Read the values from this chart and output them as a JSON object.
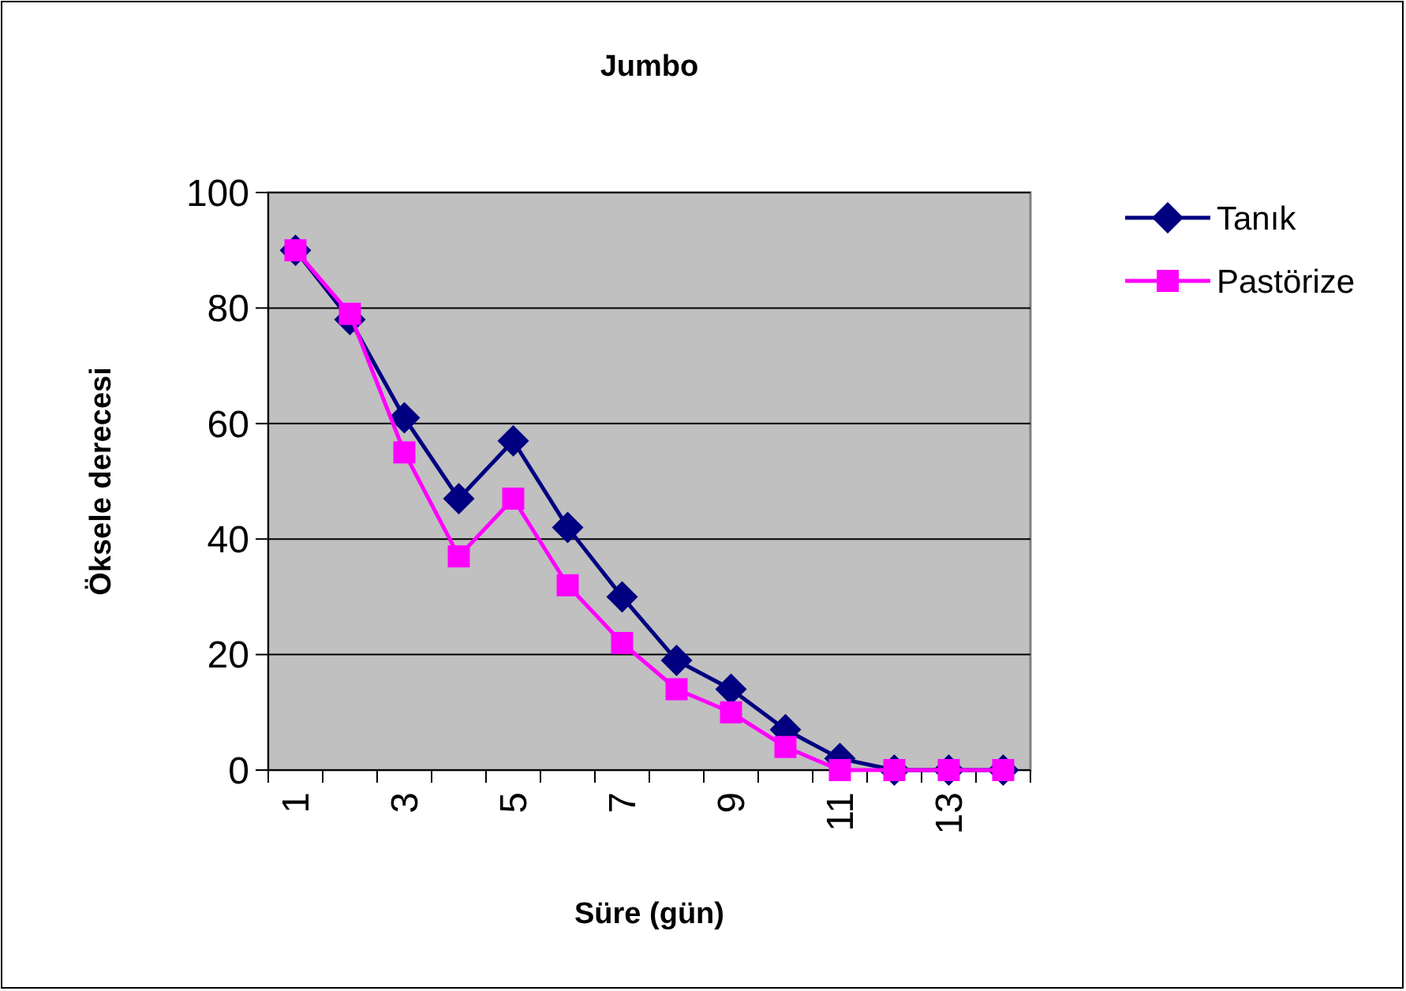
{
  "chart_data": {
    "type": "line",
    "title": "Jumbo",
    "xlabel": "Süre (gün)",
    "ylabel": "Öksele derecesi",
    "categories": [
      "1",
      null,
      "3",
      null,
      "5",
      null,
      "7",
      null,
      "9",
      null,
      "11",
      null,
      "13",
      null
    ],
    "series": [
      {
        "name": "Tanık",
        "color": "#000080",
        "marker": "diamond",
        "values": [
          90,
          78,
          61,
          47,
          57,
          42,
          30,
          19,
          14,
          7,
          2,
          0,
          0,
          0
        ]
      },
      {
        "name": "Pastörize",
        "color": "#ff00ff",
        "marker": "square",
        "values": [
          90,
          79,
          55,
          37,
          47,
          32,
          22,
          14,
          10,
          4,
          0,
          0,
          0,
          0
        ]
      }
    ],
    "ylim": [
      0,
      100
    ],
    "yticks": [
      0,
      20,
      40,
      60,
      80,
      100
    ],
    "grid": "y",
    "legend": "right"
  }
}
